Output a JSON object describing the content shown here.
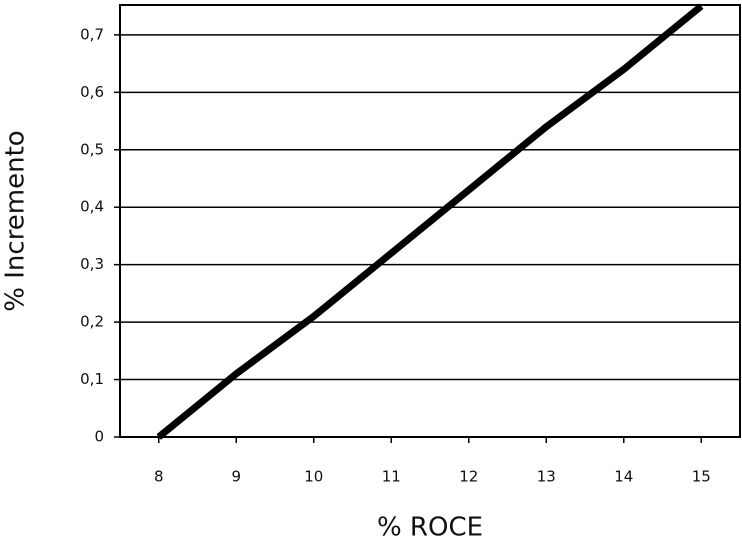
{
  "chart_data": {
    "type": "line",
    "x_label": "% ROCE",
    "y_label": "% Incremento",
    "x": [
      8,
      9,
      10,
      11,
      12,
      13,
      14,
      15
    ],
    "series": [
      {
        "name": "Incremento",
        "color": "#000000",
        "values": [
          0,
          0.11,
          0.21,
          0.32,
          0.43,
          0.54,
          0.64,
          0.75
        ]
      }
    ],
    "xlim": [
      7.5,
      15.5
    ],
    "xticks": [
      8,
      9,
      10,
      11,
      12,
      13,
      14,
      15
    ],
    "ylim": [
      0,
      0.752
    ],
    "yticks": [
      0,
      {
        "value": 0.1,
        "label": "0,1"
      },
      {
        "value": 0.2,
        "label": "0,2"
      },
      {
        "value": 0.3,
        "label": "0,3"
      },
      {
        "value": 0.4,
        "label": "0,4"
      },
      {
        "value": 0.5,
        "label": "0,5"
      },
      {
        "value": 0.6,
        "label": "0,6"
      },
      {
        "value": 0.7,
        "label": "0,7"
      }
    ],
    "grid": true
  }
}
